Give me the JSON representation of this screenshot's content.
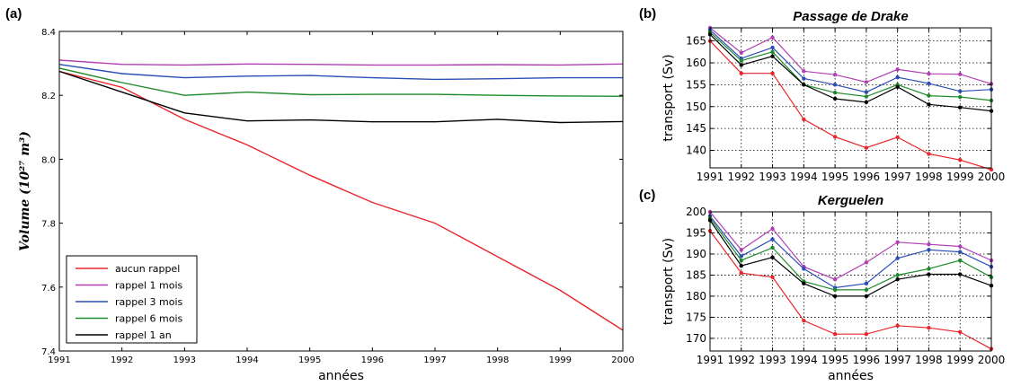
{
  "chart_data": [
    {
      "panel": "(a)",
      "type": "line",
      "title": "",
      "xlabel": "années",
      "ylabel": "Volume (10²⁷ m³)",
      "xlim": [
        1991,
        2000
      ],
      "ylim": [
        7.4,
        8.4
      ],
      "xticks": [
        "1991",
        "1992",
        "1993",
        "1994",
        "1995",
        "1996",
        "1997",
        "1998",
        "1999",
        "2000"
      ],
      "yticks": [
        "7.4",
        "7.6",
        "7.8",
        "8.0",
        "8.2",
        "8.4"
      ],
      "grid": false,
      "legend_position": "lower-left",
      "x": [
        1991,
        1992,
        1993,
        1994,
        1995,
        1996,
        1997,
        1998,
        1999,
        2000
      ],
      "series": [
        {
          "name": "aucun rappel",
          "color": "#e8262b",
          "values": [
            8.275,
            8.225,
            8.125,
            8.045,
            7.95,
            7.865,
            7.8,
            7.695,
            7.59,
            7.465
          ]
        },
        {
          "name": "rappel 1 mois",
          "color": "#b140b5",
          "values": [
            8.31,
            8.297,
            8.295,
            8.298,
            8.297,
            8.295,
            8.295,
            8.296,
            8.295,
            8.298
          ]
        },
        {
          "name": "rappel 3 mois",
          "color": "#2a4fb5",
          "values": [
            8.297,
            8.268,
            8.255,
            8.26,
            8.262,
            8.255,
            8.25,
            8.252,
            8.255,
            8.255
          ]
        },
        {
          "name": "rappel 6 mois",
          "color": "#1f8a2a",
          "values": [
            8.285,
            8.24,
            8.2,
            8.21,
            8.202,
            8.203,
            8.203,
            8.2,
            8.198,
            8.197
          ]
        },
        {
          "name": "rappel 1 an",
          "color": "#000000",
          "values": [
            8.275,
            8.21,
            8.145,
            8.12,
            8.123,
            8.117,
            8.117,
            8.125,
            8.115,
            8.118
          ]
        }
      ]
    },
    {
      "panel": "(b)",
      "type": "line",
      "title": "Passage de Drake",
      "xlabel": "",
      "ylabel": "transport (Sv)",
      "xlim": [
        1991,
        2000
      ],
      "ylim": [
        136,
        168
      ],
      "xticks": [
        "1991",
        "1992",
        "1993",
        "1994",
        "1995",
        "1996",
        "1997",
        "1998",
        "1999",
        "2000"
      ],
      "yticks": [
        "140",
        "145",
        "150",
        "155",
        "160",
        "165"
      ],
      "grid": true,
      "x": [
        1991,
        1992,
        1993,
        1994,
        1995,
        1996,
        1997,
        1998,
        1999,
        2000
      ],
      "series": [
        {
          "color": "#e8262b",
          "values": [
            165,
            157.6,
            157.6,
            147.1,
            143.1,
            140.6,
            143,
            139.2,
            137.8,
            135.6
          ]
        },
        {
          "color": "#b140b5",
          "values": [
            168,
            162.3,
            165.8,
            158.1,
            157.3,
            155.6,
            158.5,
            157.5,
            157.4,
            155.2
          ]
        },
        {
          "color": "#2a4fb5",
          "values": [
            167.5,
            161,
            163.5,
            156.4,
            155,
            153.3,
            156.7,
            155.3,
            153.5,
            153.9
          ]
        },
        {
          "color": "#1f8a2a",
          "values": [
            167,
            160.5,
            162.5,
            155,
            153.2,
            152.3,
            155,
            152.5,
            152.2,
            151.4
          ]
        },
        {
          "color": "#000000",
          "values": [
            166.5,
            159.5,
            161.5,
            155,
            151.8,
            151,
            154.5,
            150.5,
            149.8,
            149
          ]
        }
      ]
    },
    {
      "panel": "(c)",
      "type": "line",
      "title": "Kerguelen",
      "xlabel": "années",
      "ylabel": "transport (Sv)",
      "xlim": [
        1991,
        2000
      ],
      "ylim": [
        167,
        200
      ],
      "xticks": [
        "1991",
        "1992",
        "1993",
        "1994",
        "1995",
        "1996",
        "1997",
        "1998",
        "1999",
        "2000"
      ],
      "yticks": [
        "170",
        "175",
        "180",
        "185",
        "190",
        "195",
        "200"
      ],
      "grid": true,
      "x": [
        1991,
        1992,
        1993,
        1994,
        1995,
        1996,
        1997,
        1998,
        1999,
        2000
      ],
      "series": [
        {
          "color": "#e8262b",
          "values": [
            195.5,
            185.5,
            184.5,
            174.2,
            171,
            171,
            173,
            172.5,
            171.5,
            167.5
          ]
        },
        {
          "color": "#b140b5",
          "values": [
            200,
            191,
            196,
            187,
            184,
            188,
            192.8,
            192.3,
            191.8,
            188.5
          ]
        },
        {
          "color": "#2a4fb5",
          "values": [
            199,
            189.5,
            193.5,
            186.5,
            182,
            183,
            189,
            191,
            190.5,
            187
          ]
        },
        {
          "color": "#1f8a2a",
          "values": [
            198.5,
            188.5,
            191.5,
            183.5,
            181.5,
            181.5,
            185,
            186.5,
            188.5,
            184.5
          ]
        },
        {
          "color": "#000000",
          "values": [
            198,
            187.2,
            189.2,
            183,
            180,
            180,
            184,
            185.2,
            185.2,
            182.5
          ]
        }
      ]
    }
  ]
}
